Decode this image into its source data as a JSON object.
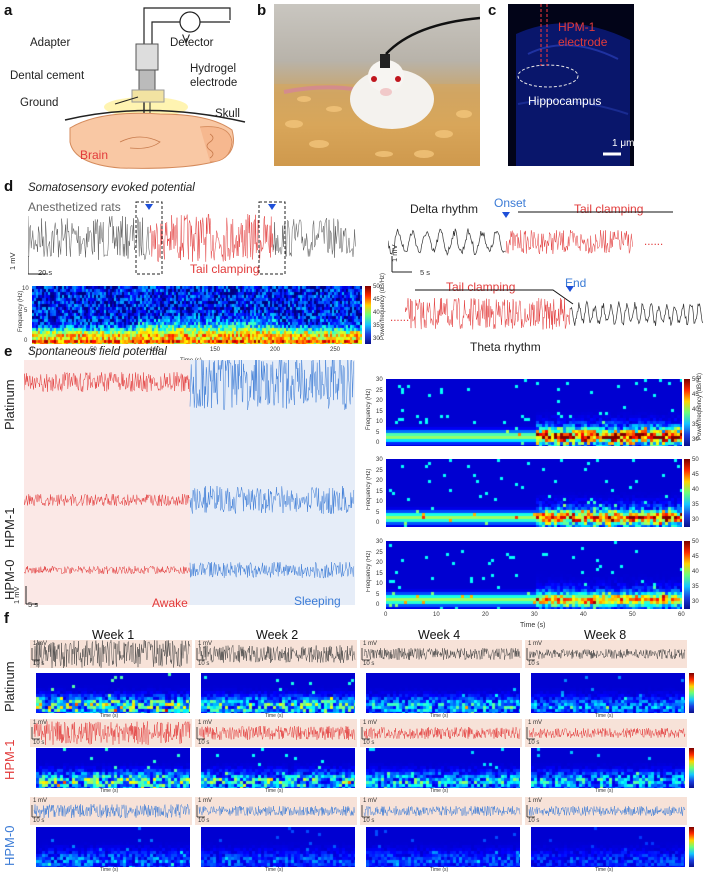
{
  "panels": {
    "a": {
      "label": "a",
      "adapter": "Adapter",
      "detector": "Detector",
      "voltmeter": "V",
      "dental_cement": "Dental cement",
      "hydrogel_electrode": "Hydrogel electrode",
      "hydrogel_line1": "Hydrogel",
      "hydrogel_line2": "electrode",
      "ground": "Ground",
      "skull": "Skull",
      "brain": "Brain"
    },
    "b": {
      "label": "b"
    },
    "c": {
      "label": "c",
      "hpm1_line1": "HPM-1",
      "hpm1_line2": "electrode",
      "hippocampus": "Hippocampus",
      "scale": "1 μm"
    },
    "d": {
      "label": "d",
      "title": "Somatosensory evoked potential",
      "anesthetized": "Anesthetized rats",
      "tail_clamping": "Tail clamping",
      "scale_v": "1 mV",
      "scale_t": "20 s",
      "delta_rhythm": "Delta rhythm",
      "onset": "Onset",
      "tail_clamping_right": "Tail clamping",
      "dots": "......",
      "scale_v2": "1 mV",
      "scale_t2": "5 s",
      "tail_clamping_lower": "Tail clamping",
      "end": "End",
      "theta_rhythm": "Theta rhythm",
      "spec_ylabel": "Frequency (Hz)",
      "spec_xlabel": "Time (s)",
      "spec_cbar": "Power/frequency (dB/Hz)",
      "spec_xticks": [
        "0",
        "50",
        "100",
        "150",
        "200",
        "250"
      ],
      "spec_yticks": [
        "10",
        "5",
        "0"
      ],
      "cbar_ticks": [
        "50",
        "45",
        "40",
        "35",
        "30"
      ]
    },
    "e": {
      "label": "e",
      "title": "Spontaneous field potential",
      "rows": [
        "Platinum",
        "HPM-1",
        "HPM-0"
      ],
      "awake": "Awake",
      "sleeping": "Sleeping",
      "scale_v": "1 mV",
      "scale_t": "5 s",
      "spec_ylabel": "Frequency (Hz)",
      "spec_xlabel": "Time (s)",
      "spec_cbar": "Power/frequency (dB/Hz)",
      "spec_xticks": [
        "0",
        "10",
        "20",
        "30",
        "40",
        "50",
        "60"
      ],
      "spec_yticks": [
        "30",
        "25",
        "20",
        "15",
        "10",
        "5",
        "0"
      ],
      "cbar_ticks": [
        "50",
        "45",
        "40",
        "35",
        "30"
      ]
    },
    "f": {
      "label": "f",
      "weeks": [
        "Week 1",
        "Week 2",
        "Week 4",
        "Week 8"
      ],
      "rows": [
        "Platinum",
        "HPM-1",
        "HPM-0"
      ],
      "scale_v": "1 mV",
      "scale_t": "10 s",
      "spec_ylabel": "Frequency (Hz)",
      "spec_xlabel": "Time (s)",
      "spec_xticks": [
        "0",
        "10",
        "20",
        "30",
        "40",
        "50",
        "60",
        "70",
        "80",
        "90",
        "100"
      ]
    }
  },
  "colors": {
    "awake_red": "#e23b3b",
    "sleep_blue": "#3b7bd6",
    "anesthetized_gray": "#555555",
    "spectrogram_bg": "#0a0f8c"
  }
}
